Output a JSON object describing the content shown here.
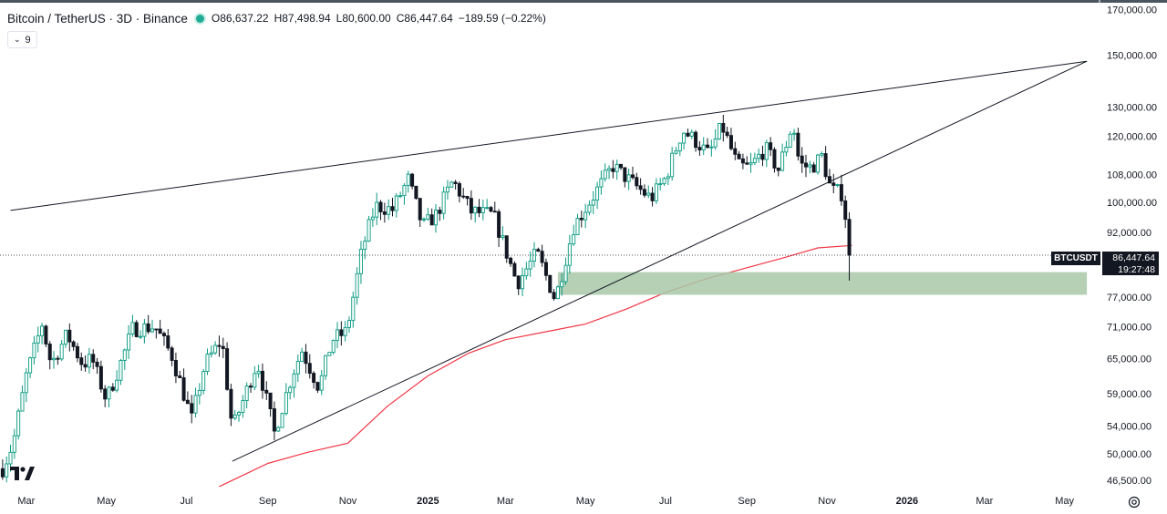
{
  "header": {
    "title": "Bitcoin / TetherUS · 3D · Binance",
    "open_label": "O",
    "open": "86,637.22",
    "high_label": "H",
    "high": "87,498.94",
    "low_label": "L",
    "low": "80,600.00",
    "close_label": "C",
    "close": "86,447.64",
    "change": "−189.59 (−0.22%)",
    "status_color": "#22ab94"
  },
  "indicator_toggle": {
    "count": "9"
  },
  "price_tag": {
    "symbol": "BTCUSDT",
    "price": "86,447.64",
    "countdown": "19:27:48"
  },
  "colors": {
    "up": "#089981",
    "down": "#131722",
    "ma": "#f23645",
    "zone": "#a8c8a8",
    "trendline": "#131722"
  },
  "chart_data": {
    "type": "candlestick",
    "y_scale": "log",
    "ylim": [
      45000,
      172000
    ],
    "xlim": [
      "2024-02-10",
      "2026-05-20"
    ],
    "y_ticks": [
      {
        "value": 170000,
        "label": "170,000.00"
      },
      {
        "value": 150000,
        "label": "150,000.00"
      },
      {
        "value": 130000,
        "label": "130,000.00"
      },
      {
        "value": 120000,
        "label": "120,000.00"
      },
      {
        "value": 108000,
        "label": "108,000.00"
      },
      {
        "value": 100000,
        "label": "100,000.00"
      },
      {
        "value": 92000,
        "label": "92,000.00"
      },
      {
        "value": 77000,
        "label": "77,000.00"
      },
      {
        "value": 71000,
        "label": "71,000.00"
      },
      {
        "value": 65000,
        "label": "65,000.00"
      },
      {
        "value": 59000,
        "label": "59,000.00"
      },
      {
        "value": 54000,
        "label": "54,000.00"
      },
      {
        "value": 50000,
        "label": "50,000.00"
      },
      {
        "value": 46500,
        "label": "46,500.00"
      }
    ],
    "x_ticks": [
      {
        "date": "2024-03-01",
        "label": "Mar",
        "bold": false
      },
      {
        "date": "2024-05-01",
        "label": "May",
        "bold": false
      },
      {
        "date": "2024-07-01",
        "label": "Jul",
        "bold": false
      },
      {
        "date": "2024-09-01",
        "label": "Sep",
        "bold": false
      },
      {
        "date": "2024-11-01",
        "label": "Nov",
        "bold": false
      },
      {
        "date": "2025-01-01",
        "label": "2025",
        "bold": true
      },
      {
        "date": "2025-03-01",
        "label": "Mar",
        "bold": false
      },
      {
        "date": "2025-05-01",
        "label": "May",
        "bold": false
      },
      {
        "date": "2025-07-01",
        "label": "Jul",
        "bold": false
      },
      {
        "date": "2025-09-01",
        "label": "Sep",
        "bold": false
      },
      {
        "date": "2025-11-01",
        "label": "Nov",
        "bold": false
      },
      {
        "date": "2026-01-01",
        "label": "2026",
        "bold": true
      },
      {
        "date": "2026-03-01",
        "label": "Mar",
        "bold": false
      },
      {
        "date": "2026-05-01",
        "label": "May",
        "bold": false
      }
    ],
    "series": [
      {
        "type": "candles",
        "interval": "3D",
        "close_path": [
          [
            "2024-02-12",
            48000
          ],
          [
            "2024-02-20",
            51500
          ],
          [
            "2024-03-01",
            62000
          ],
          [
            "2024-03-13",
            71500
          ],
          [
            "2024-03-20",
            64000
          ],
          [
            "2024-04-01",
            69500
          ],
          [
            "2024-04-13",
            64000
          ],
          [
            "2024-04-20",
            65000
          ],
          [
            "2024-05-01",
            58000
          ],
          [
            "2024-05-10",
            63000
          ],
          [
            "2024-05-21",
            70500
          ],
          [
            "2024-06-07",
            71000
          ],
          [
            "2024-06-20",
            65500
          ],
          [
            "2024-07-05",
            55000
          ],
          [
            "2024-07-15",
            64000
          ],
          [
            "2024-07-28",
            68500
          ],
          [
            "2024-08-05",
            53500
          ],
          [
            "2024-08-15",
            59000
          ],
          [
            "2024-08-24",
            64500
          ],
          [
            "2024-09-06",
            53000
          ],
          [
            "2024-09-20",
            62500
          ],
          [
            "2024-09-27",
            66500
          ],
          [
            "2024-10-10",
            60000
          ],
          [
            "2024-10-20",
            68500
          ],
          [
            "2024-10-31",
            70000
          ],
          [
            "2024-11-12",
            88000
          ],
          [
            "2024-11-22",
            99000
          ],
          [
            "2024-12-05",
            98000
          ],
          [
            "2024-12-17",
            106500
          ],
          [
            "2024-12-28",
            93500
          ],
          [
            "2025-01-07",
            96500
          ],
          [
            "2025-01-20",
            106000
          ],
          [
            "2025-02-03",
            97500
          ],
          [
            "2025-02-20",
            96500
          ],
          [
            "2025-03-03",
            86000
          ],
          [
            "2025-03-10",
            80000
          ],
          [
            "2025-03-25",
            87000
          ],
          [
            "2025-04-08",
            76500
          ],
          [
            "2025-04-22",
            93500
          ],
          [
            "2025-05-10",
            103500
          ],
          [
            "2025-05-22",
            110500
          ],
          [
            "2025-06-07",
            105000
          ],
          [
            "2025-06-20",
            101000
          ],
          [
            "2025-07-01",
            107000
          ],
          [
            "2025-07-14",
            122000
          ],
          [
            "2025-07-25",
            118000
          ],
          [
            "2025-08-03",
            114000
          ],
          [
            "2025-08-13",
            123500
          ],
          [
            "2025-08-25",
            110500
          ],
          [
            "2025-09-03",
            110000
          ],
          [
            "2025-09-15",
            116000
          ],
          [
            "2025-09-25",
            109500
          ],
          [
            "2025-10-06",
            124500
          ],
          [
            "2025-10-11",
            111000
          ],
          [
            "2025-10-20",
            110000
          ],
          [
            "2025-10-28",
            113500
          ],
          [
            "2025-11-04",
            103500
          ],
          [
            "2025-11-12",
            102500
          ],
          [
            "2025-11-17",
            92500
          ],
          [
            "2025-11-20",
            86447.64
          ]
        ]
      },
      {
        "type": "line",
        "name": "",
        "color": "#f23645",
        "points": [
          [
            "2024-07-26",
            45700
          ],
          [
            "2024-09-01",
            48700
          ],
          [
            "2024-10-01",
            50200
          ],
          [
            "2024-11-01",
            51500
          ],
          [
            "2024-12-01",
            57000
          ],
          [
            "2025-01-01",
            62000
          ],
          [
            "2025-02-01",
            66000
          ],
          [
            "2025-03-01",
            68500
          ],
          [
            "2025-04-01",
            70000
          ],
          [
            "2025-05-01",
            71500
          ],
          [
            "2025-06-01",
            74500
          ],
          [
            "2025-07-01",
            78000
          ],
          [
            "2025-08-01",
            81000
          ],
          [
            "2025-09-01",
            83500
          ],
          [
            "2025-10-01",
            86000
          ],
          [
            "2025-10-25",
            88200
          ],
          [
            "2025-11-20",
            88800
          ]
        ]
      },
      {
        "type": "trendline",
        "points": [
          [
            "2024-02-18",
            97800
          ],
          [
            "2026-05-18",
            147500
          ]
        ]
      },
      {
        "type": "trendline",
        "points": [
          [
            "2024-08-05",
            49000
          ],
          [
            "2026-05-18",
            147500
          ]
        ]
      },
      {
        "type": "zone",
        "from": "2025-04-10",
        "to": "2026-05-18",
        "y_low": 77500,
        "y_high": 82500
      }
    ]
  }
}
